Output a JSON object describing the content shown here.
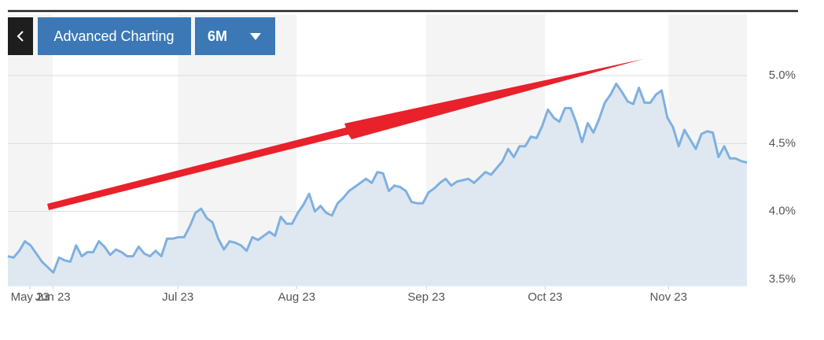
{
  "toolbar": {
    "button": "Advanced Charting",
    "range": "6M"
  },
  "chart_data": {
    "type": "area",
    "color": "#7fb0e0",
    "fill": "#dfe8f1",
    "values": [
      3.67,
      3.66,
      3.71,
      3.78,
      3.75,
      3.69,
      3.63,
      3.59,
      3.55,
      3.66,
      3.64,
      3.63,
      3.75,
      3.67,
      3.7,
      3.7,
      3.78,
      3.74,
      3.68,
      3.72,
      3.7,
      3.67,
      3.67,
      3.74,
      3.69,
      3.67,
      3.71,
      3.67,
      3.8,
      3.8,
      3.81,
      3.81,
      3.89,
      3.99,
      4.02,
      3.95,
      3.92,
      3.8,
      3.72,
      3.78,
      3.77,
      3.75,
      3.71,
      3.81,
      3.79,
      3.82,
      3.85,
      3.82,
      3.96,
      3.91,
      3.91,
      3.99,
      4.05,
      4.13,
      4.0,
      4.04,
      3.99,
      3.97,
      4.06,
      4.1,
      4.15,
      4.18,
      4.21,
      4.24,
      4.21,
      4.29,
      4.28,
      4.15,
      4.19,
      4.18,
      4.15,
      4.07,
      4.06,
      4.06,
      4.14,
      4.17,
      4.21,
      4.24,
      4.19,
      4.22,
      4.23,
      4.24,
      4.21,
      4.25,
      4.29,
      4.27,
      4.32,
      4.37,
      4.46,
      4.4,
      4.48,
      4.48,
      4.55,
      4.54,
      4.63,
      4.75,
      4.69,
      4.66,
      4.76,
      4.76,
      4.65,
      4.51,
      4.65,
      4.58,
      4.68,
      4.8,
      4.86,
      4.94,
      4.88,
      4.81,
      4.79,
      4.91,
      4.8,
      4.8,
      4.86,
      4.89,
      4.69,
      4.62,
      4.48,
      4.6,
      4.53,
      4.46,
      4.57,
      4.59,
      4.58,
      4.4,
      4.48,
      4.39,
      4.39,
      4.37,
      4.36
    ],
    "xlim": [
      0,
      130
    ],
    "xticks": [
      {
        "value": 3.9,
        "label": "May 23"
      },
      {
        "value": 7.9,
        "label": "Jun 23"
      },
      {
        "value": 29.9,
        "label": "Jul 23"
      },
      {
        "value": 50.8,
        "label": "Aug 23"
      },
      {
        "value": 73.6,
        "label": "Sep 23"
      },
      {
        "value": 94.5,
        "label": "Oct 23"
      },
      {
        "value": 116.2,
        "label": "Nov 23"
      }
    ],
    "ylim": [
      3.45,
      5.45
    ],
    "yticks": [
      {
        "value": 3.5,
        "label": "3.5%"
      },
      {
        "value": 4.0,
        "label": "4.0%"
      },
      {
        "value": 4.5,
        "label": "4.5%"
      },
      {
        "value": 5.0,
        "label": "5.0%"
      }
    ],
    "grid": true
  }
}
